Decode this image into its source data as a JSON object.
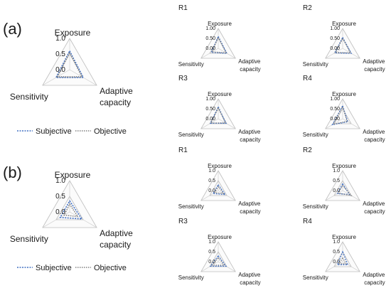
{
  "panels": [
    {
      "label": "(a)"
    },
    {
      "label": "(b)"
    }
  ],
  "legend": {
    "entries": [
      {
        "label": "Subjective",
        "color": "#4472c4"
      },
      {
        "label": "Objective",
        "color": "#808080"
      }
    ]
  },
  "chart_data": [
    {
      "type": "radar",
      "panel": "(a)",
      "title": "",
      "axes": [
        "Exposure",
        "Adaptive capacity",
        "Sensitivity"
      ],
      "tick_labels": [
        "0.0",
        "0.5",
        "1.0"
      ],
      "range": [
        0,
        1
      ],
      "series": [
        {
          "name": "Subjective",
          "values": [
            0.6,
            0.5,
            0.5
          ]
        },
        {
          "name": "Objective",
          "values": [
            0.55,
            0.45,
            0.45
          ]
        }
      ]
    },
    {
      "type": "radar",
      "panel": "(a)",
      "title": "R1",
      "axes": [
        "Exposure",
        "Adaptive capacity",
        "Sensitivity"
      ],
      "tick_labels": [
        "0.00",
        "0.50",
        "1.00"
      ],
      "range": [
        0,
        1
      ],
      "series": [
        {
          "name": "Subjective",
          "values": [
            0.6,
            0.5,
            0.4
          ]
        },
        {
          "name": "Objective",
          "values": [
            0.55,
            0.45,
            0.35
          ]
        }
      ]
    },
    {
      "type": "radar",
      "panel": "(a)",
      "title": "R2",
      "axes": [
        "Exposure",
        "Adaptive capacity",
        "Sensitivity"
      ],
      "tick_labels": [
        "0.00",
        "0.50",
        "1.00"
      ],
      "range": [
        0,
        1
      ],
      "series": [
        {
          "name": "Subjective",
          "values": [
            0.55,
            0.5,
            0.45
          ]
        },
        {
          "name": "Objective",
          "values": [
            0.5,
            0.45,
            0.4
          ]
        }
      ]
    },
    {
      "type": "radar",
      "panel": "(a)",
      "title": "R3",
      "axes": [
        "Exposure",
        "Adaptive capacity",
        "Sensitivity"
      ],
      "tick_labels": [
        "0.00",
        "0.50",
        "1.00"
      ],
      "range": [
        0,
        1
      ],
      "series": [
        {
          "name": "Subjective",
          "values": [
            0.6,
            0.45,
            0.45
          ]
        },
        {
          "name": "Objective",
          "values": [
            0.55,
            0.42,
            0.42
          ]
        }
      ]
    },
    {
      "type": "radar",
      "panel": "(a)",
      "title": "R4",
      "axes": [
        "Exposure",
        "Adaptive capacity",
        "Sensitivity"
      ],
      "tick_labels": [
        "0.00",
        "0.50",
        "1.00"
      ],
      "range": [
        0,
        1
      ],
      "series": [
        {
          "name": "Subjective",
          "values": [
            0.65,
            0.3,
            0.6
          ]
        },
        {
          "name": "Objective",
          "values": [
            0.6,
            0.25,
            0.55
          ]
        }
      ]
    },
    {
      "type": "radar",
      "panel": "(b)",
      "title": "",
      "axes": [
        "Exposure",
        "Adaptive capacity",
        "Sensitivity"
      ],
      "tick_labels": [
        "0.0",
        "0.5",
        "1.0"
      ],
      "range": [
        0,
        1
      ],
      "series": [
        {
          "name": "Subjective",
          "values": [
            0.35,
            0.45,
            0.35
          ]
        },
        {
          "name": "Objective",
          "values": [
            0.25,
            0.3,
            0.2
          ]
        }
      ]
    },
    {
      "type": "radar",
      "panel": "(b)",
      "title": "R1",
      "axes": [
        "Exposure",
        "Adaptive capacity",
        "Sensitivity"
      ],
      "tick_labels": [
        "0.0",
        "0.5",
        "1.0"
      ],
      "range": [
        0,
        1
      ],
      "series": [
        {
          "name": "Subjective",
          "values": [
            0.3,
            0.4,
            0.3
          ]
        },
        {
          "name": "Objective",
          "values": [
            0.2,
            0.3,
            0.2
          ]
        }
      ]
    },
    {
      "type": "radar",
      "panel": "(b)",
      "title": "R2",
      "axes": [
        "Exposure",
        "Adaptive capacity",
        "Sensitivity"
      ],
      "tick_labels": [
        "0.0",
        "0.5",
        "1.0"
      ],
      "range": [
        0,
        1
      ],
      "series": [
        {
          "name": "Subjective",
          "values": [
            0.35,
            0.4,
            0.3
          ]
        },
        {
          "name": "Objective",
          "values": [
            0.25,
            0.5,
            0.25
          ]
        }
      ]
    },
    {
      "type": "radar",
      "panel": "(b)",
      "title": "R3",
      "axes": [
        "Exposure",
        "Adaptive capacity",
        "Sensitivity"
      ],
      "tick_labels": [
        "0.0",
        "0.5",
        "1.0"
      ],
      "range": [
        0,
        1
      ],
      "series": [
        {
          "name": "Subjective",
          "values": [
            0.3,
            0.45,
            0.45
          ]
        },
        {
          "name": "Objective",
          "values": [
            0.2,
            0.35,
            0.35
          ]
        }
      ]
    },
    {
      "type": "radar",
      "panel": "(b)",
      "title": "R4",
      "axes": [
        "Exposure",
        "Adaptive capacity",
        "Sensitivity"
      ],
      "tick_labels": [
        "0.0",
        "0.5",
        "1.0"
      ],
      "range": [
        0,
        1
      ],
      "series": [
        {
          "name": "Subjective",
          "values": [
            0.5,
            0.3,
            0.3
          ]
        },
        {
          "name": "Objective",
          "values": [
            0.2,
            0.2,
            0.2
          ]
        }
      ]
    }
  ]
}
